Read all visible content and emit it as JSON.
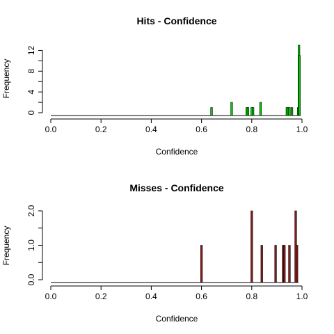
{
  "chart_data": [
    {
      "type": "bar",
      "title": "Hits - Confidence",
      "xlabel": "Confidence",
      "ylabel": "Frequency",
      "xlim": [
        0.0,
        1.0
      ],
      "ylim": [
        0,
        13
      ],
      "xticks": [
        "0.0",
        "0.2",
        "0.4",
        "0.6",
        "0.8",
        "1.0"
      ],
      "yticks": [
        "0",
        "4",
        "8",
        "12"
      ],
      "bar_color": "#00cc00",
      "edge_color": "#000000",
      "grid": false,
      "x": [
        0.64,
        0.72,
        0.78,
        0.785,
        0.8,
        0.805,
        0.835,
        0.94,
        0.945,
        0.95,
        0.96,
        0.985,
        0.988,
        0.99
      ],
      "values": [
        1,
        2,
        1,
        1,
        1,
        1,
        2,
        1,
        1,
        1,
        1,
        1,
        13,
        11
      ]
    },
    {
      "type": "bar",
      "title": "Misses - Confidence",
      "xlabel": "Confidence",
      "ylabel": "Frequency",
      "xlim": [
        0.0,
        1.0
      ],
      "ylim": [
        0,
        2.0
      ],
      "xticks": [
        "0.0",
        "0.2",
        "0.4",
        "0.6",
        "0.8",
        "1.0"
      ],
      "yticks": [
        "0.0",
        "1.0",
        "2.0"
      ],
      "bar_color": "#8b1a1a",
      "edge_color": "#000000",
      "grid": false,
      "x": [
        0.6,
        0.8,
        0.84,
        0.895,
        0.925,
        0.93,
        0.95,
        0.975,
        0.98
      ],
      "values": [
        1,
        2,
        1,
        1,
        1,
        1,
        1,
        2,
        1
      ]
    }
  ]
}
